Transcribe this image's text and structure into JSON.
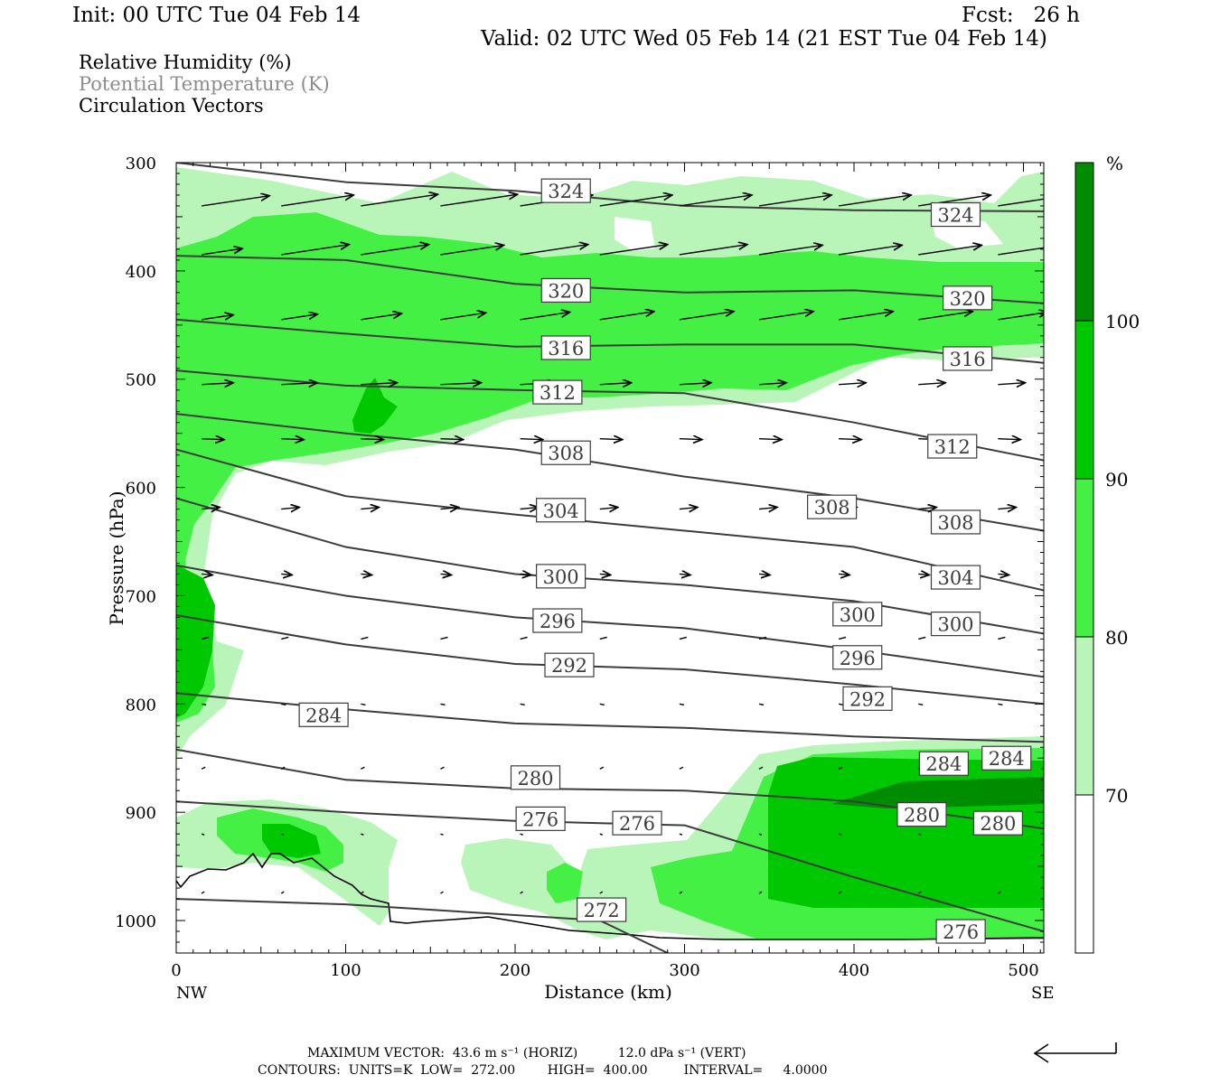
{
  "header": {
    "init": "Init: 00 UTC Tue 04 Feb 14",
    "fcst": "Fcst:   26 h",
    "valid": "Valid: 02 UTC Wed 05 Feb 14 (21 EST Tue 04 Feb 14)"
  },
  "legend": {
    "fields": [
      {
        "label": "Relative Humidity (%)",
        "color": "#000000"
      },
      {
        "label": "Potential Temperature (K)",
        "color": "#8c8c8c"
      },
      {
        "label": "Circulation Vectors",
        "color": "#000000"
      }
    ]
  },
  "footer": {
    "line1": "MAXIMUM VECTOR:  43.6 m s⁻¹ (HORIZ)          12.0 dPa s⁻¹ (VERT)",
    "line2": "CONTOURS:  UNITS=K  LOW=  272.00        HIGH=  400.00         INTERVAL=     4.0000"
  },
  "chart_data": {
    "type": "heatmap",
    "title": "Relative Humidity (%), Potential Temperature (K), Circulation Vectors",
    "xlabel": "Distance (km)",
    "ylabel": "Pressure (hPa)",
    "xlim": [
      0,
      512
    ],
    "ylim": [
      1030,
      300
    ],
    "xticks": [
      0,
      100,
      200,
      300,
      400,
      500
    ],
    "yticks": [
      300,
      400,
      500,
      600,
      700,
      800,
      900,
      1000
    ],
    "x_end_labels": {
      "left": "NW",
      "right": "SE"
    },
    "colorbar": {
      "unit": "%",
      "levels": [
        70,
        80,
        90,
        100
      ],
      "colors": [
        "#ffffff",
        "#b9f5b9",
        "#45f045",
        "#00c800",
        "#008c00"
      ]
    },
    "theta_contours": [
      {
        "value": 324,
        "x": [
          0,
          100,
          200,
          300,
          400,
          512
        ],
        "p": [
          300,
          318,
          326,
          340,
          344,
          345
        ],
        "labels": [
          [
            230,
            326
          ],
          [
            460,
            348
          ]
        ]
      },
      {
        "value": 320,
        "x": [
          0,
          100,
          200,
          300,
          400,
          512
        ],
        "p": [
          386,
          390,
          412,
          420,
          418,
          430
        ],
        "labels": [
          [
            230,
            418
          ],
          [
            467,
            425
          ]
        ]
      },
      {
        "value": 316,
        "x": [
          0,
          100,
          200,
          300,
          400,
          512
        ],
        "p": [
          445,
          458,
          470,
          468,
          468,
          485
        ],
        "labels": [
          [
            230,
            471
          ],
          [
            467,
            481
          ]
        ]
      },
      {
        "value": 312,
        "x": [
          0,
          100,
          200,
          300,
          400,
          512
        ],
        "p": [
          492,
          506,
          510,
          513,
          540,
          575
        ],
        "labels": [
          [
            225,
            512
          ],
          [
            458,
            562
          ]
        ]
      },
      {
        "value": 308,
        "x": [
          0,
          100,
          200,
          300,
          400,
          512
        ],
        "p": [
          532,
          550,
          565,
          590,
          610,
          640
        ],
        "labels": [
          [
            230,
            568
          ],
          [
            387,
            618
          ],
          [
            460,
            632
          ]
        ]
      },
      {
        "value": 304,
        "x": [
          0,
          100,
          200,
          300,
          400,
          512
        ],
        "p": [
          565,
          608,
          625,
          640,
          655,
          695
        ],
        "labels": [
          [
            227,
            621
          ],
          [
            460,
            683
          ]
        ]
      },
      {
        "value": 300,
        "x": [
          0,
          100,
          200,
          300,
          400,
          512
        ],
        "p": [
          610,
          655,
          680,
          690,
          705,
          735
        ],
        "labels": [
          [
            227,
            682
          ],
          [
            402,
            717
          ],
          [
            460,
            726
          ]
        ]
      },
      {
        "value": 296,
        "x": [
          0,
          100,
          200,
          300,
          400,
          512
        ],
        "p": [
          672,
          700,
          720,
          730,
          750,
          775
        ],
        "labels": [
          [
            225,
            723
          ],
          [
            402,
            757
          ]
        ]
      },
      {
        "value": 292,
        "x": [
          0,
          100,
          200,
          300,
          400,
          512
        ],
        "p": [
          718,
          745,
          763,
          768,
          782,
          800
        ],
        "labels": [
          [
            232,
            764
          ],
          [
            408,
            795
          ]
        ]
      },
      {
        "value": 284,
        "x": [
          0,
          100,
          200,
          300,
          400,
          512
        ],
        "p": [
          790,
          805,
          818,
          822,
          830,
          835
        ],
        "labels": [
          [
            87,
            810
          ],
          [
            453,
            855
          ]
        ]
      },
      {
        "value": 280,
        "x": [
          0,
          100,
          200,
          300,
          400,
          512
        ],
        "p": [
          842,
          870,
          878,
          880,
          890,
          915
        ],
        "labels": [
          [
            212,
            868
          ],
          [
            440,
            902
          ],
          [
            485,
            910
          ]
        ]
      },
      {
        "value": 276,
        "x": [
          0,
          100,
          200,
          300,
          400,
          512
        ],
        "p": [
          890,
          900,
          908,
          912,
          960,
          1010
        ],
        "labels": [
          [
            215,
            906
          ],
          [
            272,
            910
          ],
          [
            463,
            1010
          ]
        ]
      },
      {
        "value": 272,
        "x": [
          0,
          100,
          200,
          250,
          290
        ],
        "p": [
          980,
          985,
          995,
          1000,
          1030
        ],
        "labels": [
          [
            251,
            990
          ]
        ]
      }
    ],
    "label_284_dup": {
      "value": 284,
      "x": 490,
      "p": 850
    },
    "vector_scale": {
      "horiz_max_m_s": 43.6,
      "vert_max_dPa_s": 12.0
    }
  }
}
